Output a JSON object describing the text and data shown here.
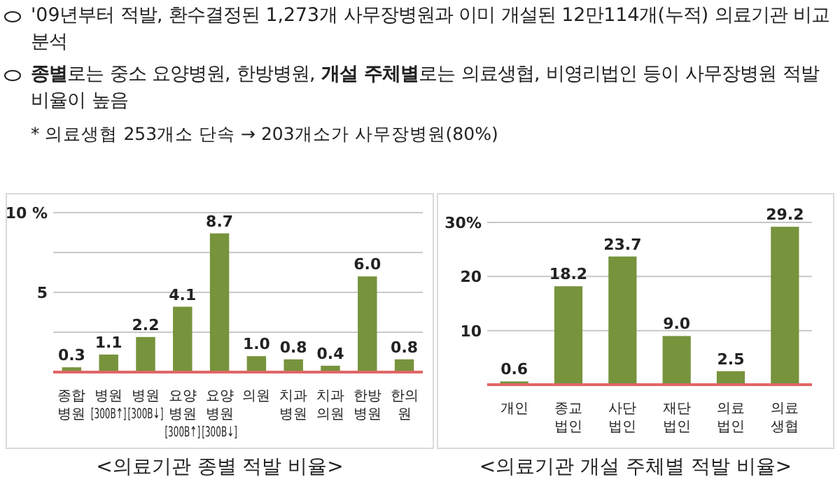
{
  "chart_data": [
    {
      "type": "bar",
      "title": "<의료기관 종별 적발 비율>",
      "annotations": [
        "'09년부터 적발, 환수결정된 1,273개 사무장병원과 이미 개설된 12만114개(누적) 의료기관 비교분석",
        "**종별**로는 중소 요양병원, 한방병원, **개설 주체별**로는 의료생협, 비영리법인 등이 사무장병원 적발 비율이 높음",
        "* 의료생협 253개소 단속 → 203개소가 사무장병원(80%)"
      ],
      "categories": [
        "종합\n병원",
        "병원\n[300B↑]",
        "병원\n[300B↓]",
        "요양\n병원\n[300B↑]",
        "요양\n병원\n[300B↓]",
        "의원",
        "치과\n병원",
        "치과\n의원",
        "한방\n병원",
        "한의\n원"
      ],
      "values": [
        0.3,
        1.1,
        2.2,
        4.1,
        8.7,
        1.0,
        0.8,
        0.4,
        6.0,
        0.8
      ],
      "color": "#77933c",
      "ylim": [
        0,
        10
      ],
      "yticks": [
        {
          "value": 2.5,
          "label": null
        },
        5,
        {
          "value": 7.5,
          "label": null
        },
        {
          "value": 10,
          "label": "10 %"
        }
      ],
      "grid": "y",
      "value_labels": [
        "0.3",
        "1.1",
        "2.2",
        "4.1",
        "8.7",
        "1.0",
        "0.8",
        "0.4",
        "6.0",
        "0.8"
      ]
    },
    {
      "type": "bar",
      "title": "<의료기관 개설 주체별 적발 비율>",
      "categories": [
        "개인",
        "종교\n법인",
        "사단\n법인",
        "재단\n법인",
        "의료\n법인",
        "의료\n생협"
      ],
      "values": [
        0.6,
        18.2,
        23.7,
        9.0,
        2.5,
        29.2
      ],
      "color": "#77933c",
      "ylim": [
        0,
        30
      ],
      "yticks": [
        10,
        20,
        {
          "value": 30,
          "label": "30%"
        }
      ],
      "grid": "y",
      "value_labels": [
        "0.6",
        "18.2",
        "23.7",
        "9.0",
        "2.5",
        "29.2"
      ]
    }
  ]
}
